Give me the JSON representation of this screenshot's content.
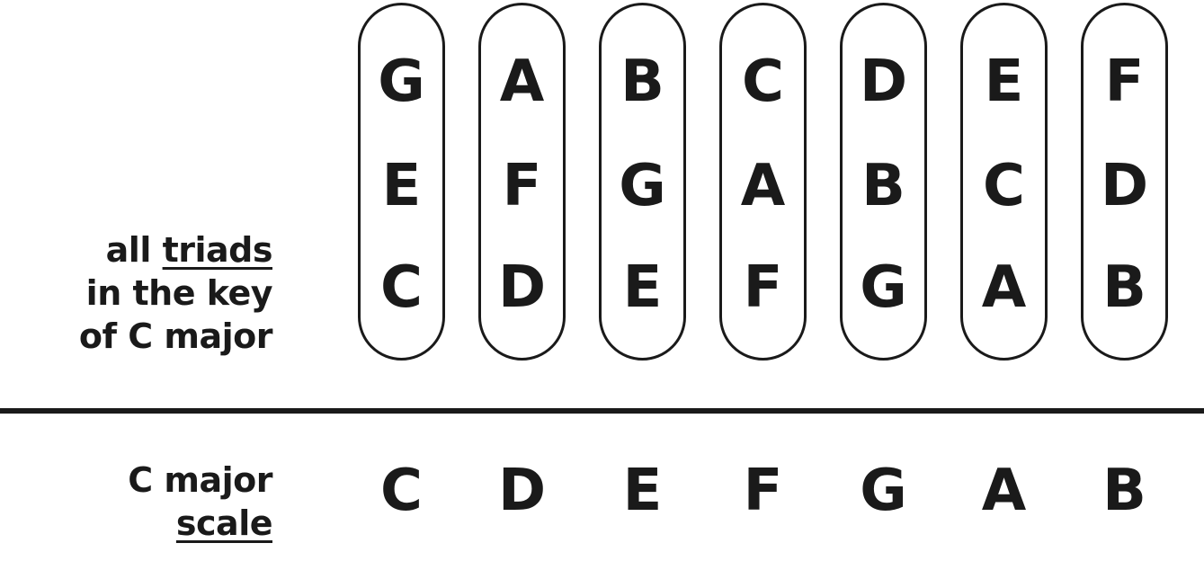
{
  "triads_caption": {
    "line1_prefix": "all ",
    "line1_underlined": "triads",
    "line2": "in the key",
    "line3": "of C major"
  },
  "triads": [
    {
      "top": "G",
      "middle": "E",
      "bottom": "C"
    },
    {
      "top": "A",
      "middle": "F",
      "bottom": "D"
    },
    {
      "top": "B",
      "middle": "G",
      "bottom": "E"
    },
    {
      "top": "C",
      "middle": "A",
      "bottom": "F"
    },
    {
      "top": "D",
      "middle": "B",
      "bottom": "G"
    },
    {
      "top": "E",
      "middle": "C",
      "bottom": "A"
    },
    {
      "top": "F",
      "middle": "D",
      "bottom": "B"
    }
  ],
  "scale_caption": {
    "line1": "C major",
    "line2_underlined": "scale"
  },
  "scale": [
    "C",
    "D",
    "E",
    "F",
    "G",
    "A",
    "B"
  ]
}
